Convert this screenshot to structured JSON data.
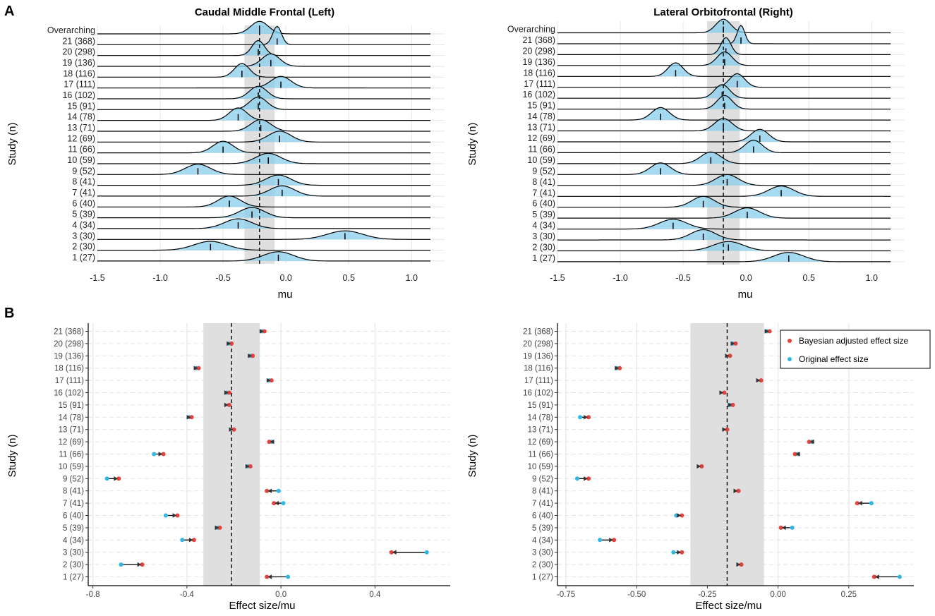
{
  "panel_labels": {
    "a": "A",
    "b": "B"
  },
  "colors": {
    "ridge_fill": "#87CEEB",
    "bayes": "#E8413B",
    "original": "#2EB8E6",
    "ci_band": "#D9D9D9",
    "grid": "#E6E6E6"
  },
  "chart_data": [
    {
      "id": "ridge-left",
      "type": "ridgeline",
      "title": "Caudal Middle Frontal (Left)",
      "xlabel": "mu",
      "ylabel": "Study (n)",
      "xlim": [
        -1.5,
        1.15
      ],
      "xticks": [
        -1.5,
        -1.0,
        -0.5,
        0.0,
        0.5,
        1.0
      ],
      "xtick_labels": [
        "-1.5",
        "-1.0",
        "-0.5",
        "0.0",
        "0.5",
        "1.0"
      ],
      "overall_mean": -0.21,
      "ci": [
        -0.33,
        -0.09
      ],
      "rows": [
        {
          "label": "Overarching",
          "mode": -0.21,
          "sd": 0.07,
          "median": -0.21
        },
        {
          "label": "21 (368)",
          "mode": -0.07,
          "sd": 0.035,
          "median": -0.07
        },
        {
          "label": "20 (298)",
          "mode": -0.22,
          "sd": 0.05,
          "median": -0.22
        },
        {
          "label": "19 (136)",
          "mode": -0.12,
          "sd": 0.07,
          "median": -0.12
        },
        {
          "label": "18 (116)",
          "mode": -0.35,
          "sd": 0.06,
          "median": -0.35
        },
        {
          "label": "17 (111)",
          "mode": -0.04,
          "sd": 0.08,
          "median": -0.04
        },
        {
          "label": "16 (102)",
          "mode": -0.22,
          "sd": 0.07,
          "median": -0.22
        },
        {
          "label": "15 (91)",
          "mode": -0.22,
          "sd": 0.07,
          "median": -0.22
        },
        {
          "label": "14 (78)",
          "mode": -0.38,
          "sd": 0.07,
          "median": -0.38
        },
        {
          "label": "13 (71)",
          "mode": -0.2,
          "sd": 0.08,
          "median": -0.2
        },
        {
          "label": "12 (69)",
          "mode": -0.05,
          "sd": 0.09,
          "median": -0.05
        },
        {
          "label": "11 (66)",
          "mode": -0.5,
          "sd": 0.08,
          "median": -0.5
        },
        {
          "label": "10 (59)",
          "mode": -0.14,
          "sd": 0.1,
          "median": -0.14
        },
        {
          "label": "9 (52)",
          "mode": -0.7,
          "sd": 0.1,
          "median": -0.7
        },
        {
          "label": "8 (41)",
          "mode": -0.06,
          "sd": 0.1,
          "median": -0.06
        },
        {
          "label": "7 (41)",
          "mode": -0.03,
          "sd": 0.1,
          "median": -0.03
        },
        {
          "label": "6 (40)",
          "mode": -0.45,
          "sd": 0.09,
          "median": -0.45
        },
        {
          "label": "5 (39)",
          "mode": -0.27,
          "sd": 0.1,
          "median": -0.27
        },
        {
          "label": "4 (34)",
          "mode": -0.38,
          "sd": 0.11,
          "median": -0.38
        },
        {
          "label": "3 (30)",
          "mode": 0.47,
          "sd": 0.14,
          "median": 0.47
        },
        {
          "label": "2 (30)",
          "mode": -0.6,
          "sd": 0.13,
          "median": -0.6
        },
        {
          "label": "1 (27)",
          "mode": -0.06,
          "sd": 0.12,
          "median": -0.06
        }
      ]
    },
    {
      "id": "ridge-right",
      "type": "ridgeline",
      "title": "Lateral Orbitofrontal (Right)",
      "xlabel": "mu",
      "ylabel": "Study (n)",
      "xlim": [
        -1.5,
        1.15
      ],
      "xticks": [
        -1.5,
        -1.0,
        -0.5,
        0.0,
        0.5,
        1.0
      ],
      "xtick_labels": [
        "-1.5",
        "-1.0",
        "-0.5",
        "0.0",
        "0.5",
        "1.0"
      ],
      "overall_mean": -0.18,
      "ci": [
        -0.31,
        -0.05
      ],
      "rows": [
        {
          "label": "Overarching",
          "mode": -0.18,
          "sd": 0.06,
          "median": -0.18
        },
        {
          "label": "21 (368)",
          "mode": -0.04,
          "sd": 0.03,
          "median": -0.04
        },
        {
          "label": "20 (298)",
          "mode": -0.16,
          "sd": 0.04,
          "median": -0.16
        },
        {
          "label": "19 (136)",
          "mode": -0.17,
          "sd": 0.06,
          "median": -0.17
        },
        {
          "label": "18 (116)",
          "mode": -0.56,
          "sd": 0.06,
          "median": -0.56
        },
        {
          "label": "17 (111)",
          "mode": -0.07,
          "sd": 0.06,
          "median": -0.07
        },
        {
          "label": "16 (102)",
          "mode": -0.19,
          "sd": 0.06,
          "median": -0.19
        },
        {
          "label": "15 (91)",
          "mode": -0.17,
          "sd": 0.06,
          "median": -0.17
        },
        {
          "label": "14 (78)",
          "mode": -0.68,
          "sd": 0.07,
          "median": -0.68
        },
        {
          "label": "13 (71)",
          "mode": -0.18,
          "sd": 0.07,
          "median": -0.18
        },
        {
          "label": "12 (69)",
          "mode": 0.11,
          "sd": 0.07,
          "median": 0.11
        },
        {
          "label": "11 (66)",
          "mode": 0.06,
          "sd": 0.07,
          "median": 0.06
        },
        {
          "label": "10 (59)",
          "mode": -0.28,
          "sd": 0.08,
          "median": -0.28
        },
        {
          "label": "9 (52)",
          "mode": -0.68,
          "sd": 0.08,
          "median": -0.68
        },
        {
          "label": "8 (41)",
          "mode": -0.15,
          "sd": 0.09,
          "median": -0.15
        },
        {
          "label": "7 (41)",
          "mode": 0.28,
          "sd": 0.1,
          "median": 0.28
        },
        {
          "label": "6 (40)",
          "mode": -0.34,
          "sd": 0.09,
          "median": -0.34
        },
        {
          "label": "5 (39)",
          "mode": 0.01,
          "sd": 0.1,
          "median": 0.01
        },
        {
          "label": "4 (34)",
          "mode": -0.58,
          "sd": 0.11,
          "median": -0.58
        },
        {
          "label": "3 (30)",
          "mode": -0.34,
          "sd": 0.1,
          "median": -0.34
        },
        {
          "label": "2 (30)",
          "mode": -0.14,
          "sd": 0.12,
          "median": -0.14
        },
        {
          "label": "1 (27)",
          "mode": 0.34,
          "sd": 0.12,
          "median": 0.34
        }
      ]
    },
    {
      "id": "dumbbell-left",
      "type": "dumbbell",
      "xlabel": "Effect size/mu",
      "ylabel": "Study (n)",
      "xlim": [
        -0.82,
        0.72
      ],
      "xticks": [
        -0.8,
        -0.4,
        0.0,
        0.4
      ],
      "xtick_labels": [
        "-0.8",
        "-0.4",
        "0.0",
        "0.4"
      ],
      "overall_mean": -0.21,
      "ci": [
        -0.33,
        -0.09
      ],
      "rows": [
        {
          "label": "21 (368)",
          "original": -0.08,
          "bayes": -0.07
        },
        {
          "label": "20 (298)",
          "original": -0.22,
          "bayes": -0.21
        },
        {
          "label": "19 (136)",
          "original": -0.13,
          "bayes": -0.12
        },
        {
          "label": "18 (116)",
          "original": -0.36,
          "bayes": -0.35
        },
        {
          "label": "17 (111)",
          "original": -0.05,
          "bayes": -0.04
        },
        {
          "label": "16 (102)",
          "original": -0.23,
          "bayes": -0.22
        },
        {
          "label": "15 (91)",
          "original": -0.22,
          "bayes": -0.22
        },
        {
          "label": "14 (78)",
          "original": -0.39,
          "bayes": -0.38
        },
        {
          "label": "13 (71)",
          "original": -0.2,
          "bayes": -0.2
        },
        {
          "label": "12 (69)",
          "original": -0.04,
          "bayes": -0.05
        },
        {
          "label": "11 (66)",
          "original": -0.54,
          "bayes": -0.5
        },
        {
          "label": "10 (59)",
          "original": -0.14,
          "bayes": -0.13
        },
        {
          "label": "9 (52)",
          "original": -0.74,
          "bayes": -0.69
        },
        {
          "label": "8 (41)",
          "original": -0.01,
          "bayes": -0.06
        },
        {
          "label": "7 (41)",
          "original": 0.01,
          "bayes": -0.03
        },
        {
          "label": "6 (40)",
          "original": -0.49,
          "bayes": -0.44
        },
        {
          "label": "5 (39)",
          "original": -0.27,
          "bayes": -0.26
        },
        {
          "label": "4 (34)",
          "original": -0.42,
          "bayes": -0.37
        },
        {
          "label": "3 (30)",
          "original": 0.62,
          "bayes": 0.47
        },
        {
          "label": "2 (30)",
          "original": -0.68,
          "bayes": -0.59
        },
        {
          "label": "1 (27)",
          "original": 0.03,
          "bayes": -0.06
        }
      ]
    },
    {
      "id": "dumbbell-right",
      "type": "dumbbell",
      "xlabel": "Effect size/mu",
      "ylabel": "Study (n)",
      "xlim": [
        -0.78,
        0.48
      ],
      "xticks": [
        -0.75,
        -0.5,
        -0.25,
        0.0,
        0.25
      ],
      "xtick_labels": [
        "-0.75",
        "-0.50",
        "-0.25",
        "0.00",
        "0.25"
      ],
      "overall_mean": -0.18,
      "ci": [
        -0.31,
        -0.05
      ],
      "legend": {
        "position": "top-right",
        "bayes_label": "Bayesian adjusted effect size",
        "original_label": "Original effect size"
      },
      "rows": [
        {
          "label": "21 (368)",
          "original": -0.04,
          "bayes": -0.03
        },
        {
          "label": "20 (298)",
          "original": -0.16,
          "bayes": -0.15
        },
        {
          "label": "19 (136)",
          "original": -0.17,
          "bayes": -0.17
        },
        {
          "label": "18 (116)",
          "original": -0.57,
          "bayes": -0.56
        },
        {
          "label": "17 (111)",
          "original": -0.06,
          "bayes": -0.06
        },
        {
          "label": "16 (102)",
          "original": -0.19,
          "bayes": -0.19
        },
        {
          "label": "15 (91)",
          "original": -0.17,
          "bayes": -0.16
        },
        {
          "label": "14 (78)",
          "original": -0.7,
          "bayes": -0.67
        },
        {
          "label": "13 (71)",
          "original": -0.18,
          "bayes": -0.18
        },
        {
          "label": "12 (69)",
          "original": 0.12,
          "bayes": 0.11
        },
        {
          "label": "11 (66)",
          "original": 0.07,
          "bayes": 0.06
        },
        {
          "label": "10 (59)",
          "original": -0.27,
          "bayes": -0.27
        },
        {
          "label": "9 (52)",
          "original": -0.71,
          "bayes": -0.67
        },
        {
          "label": "8 (41)",
          "original": -0.14,
          "bayes": -0.14
        },
        {
          "label": "7 (41)",
          "original": 0.33,
          "bayes": 0.28
        },
        {
          "label": "6 (40)",
          "original": -0.36,
          "bayes": -0.34
        },
        {
          "label": "5 (39)",
          "original": 0.05,
          "bayes": 0.01
        },
        {
          "label": "4 (34)",
          "original": -0.63,
          "bayes": -0.58
        },
        {
          "label": "3 (30)",
          "original": -0.37,
          "bayes": -0.34
        },
        {
          "label": "2 (30)",
          "original": -0.13,
          "bayes": -0.13
        },
        {
          "label": "1 (27)",
          "original": 0.43,
          "bayes": 0.34
        }
      ]
    }
  ]
}
